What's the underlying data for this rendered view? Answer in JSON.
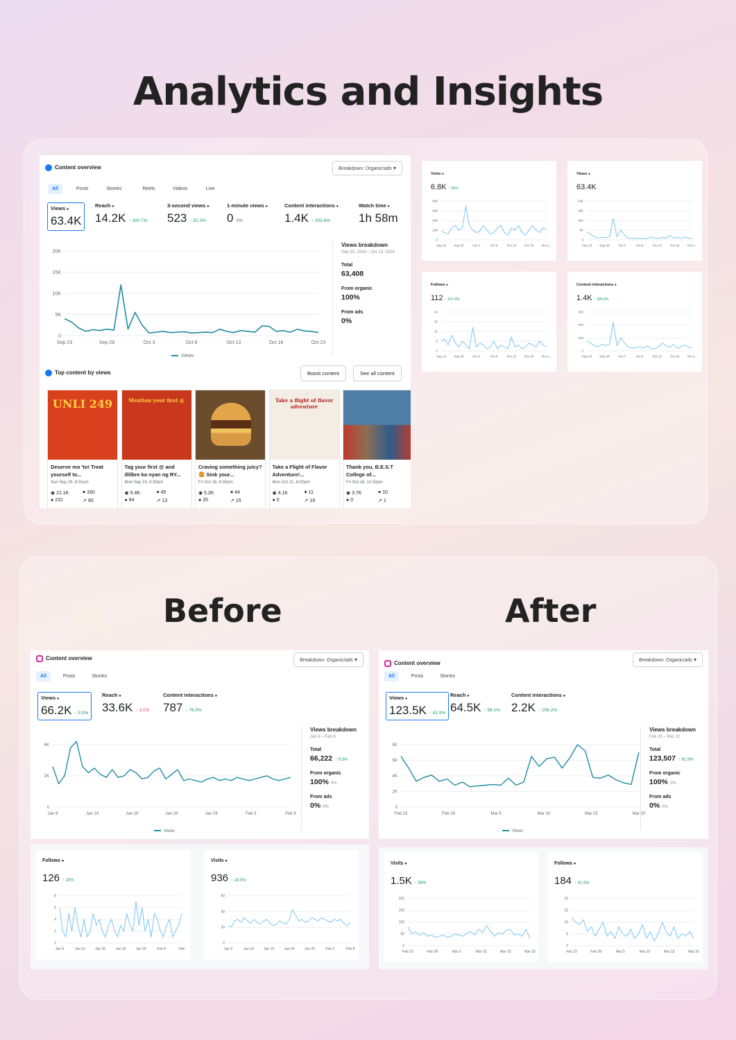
{
  "title": "Analytics and Insights",
  "before_label": "Before",
  "after_label": "After",
  "colors": {
    "line": "#1f8a9e",
    "light_line": "#7cc6f0",
    "accent": "#1877f2",
    "up": "#1a9a6c",
    "down": "#e4405f"
  },
  "top": {
    "panel_title": "Content overview",
    "breakdown": "Breakdown: Organic/ads",
    "tabs": [
      "All",
      "Posts",
      "Stories",
      "Reels",
      "Videos",
      "Live"
    ],
    "metrics": [
      {
        "label": "Views",
        "value": "63.4K",
        "change": ""
      },
      {
        "label": "Reach",
        "value": "14.2K",
        "change": "↑ 300.7%"
      },
      {
        "label": "3-second views",
        "value": "523",
        "change": "↑ 92.3%"
      },
      {
        "label": "1-minute views",
        "value": "0",
        "change": "0%"
      },
      {
        "label": "Content interactions",
        "value": "1.4K",
        "change": "↑ 305.6%"
      },
      {
        "label": "Watch time",
        "value": "1h 58m",
        "change": ""
      }
    ],
    "chart": {
      "yticks": [
        "20K",
        "15K",
        "10K",
        "5K",
        "0"
      ],
      "xticks": [
        "Sep 23",
        "Sep 28",
        "Oct 3",
        "Oct 8",
        "Oct 13",
        "Oct 18",
        "Oct 23"
      ],
      "values": [
        4000,
        3200,
        1800,
        1000,
        1400,
        1200,
        1500,
        1300,
        12000,
        1500,
        5500,
        2500,
        600,
        800,
        1000,
        700,
        800,
        900,
        600,
        700,
        800,
        700,
        1500,
        1000,
        700,
        1200,
        1000,
        800,
        2300,
        2200,
        1000,
        1200,
        800,
        1500,
        1100,
        1000,
        700
      ],
      "legend": "Views"
    },
    "breakdown_panel": {
      "heading": "Views breakdown",
      "date": "Sep 23, 2024 – Oct 23, 2024",
      "total_label": "Total",
      "total": "63,408",
      "organic_label": "From organic",
      "organic": "100%",
      "ads_label": "From ads",
      "ads": "0%"
    },
    "top_content_title": "Top content by views",
    "boost_button": "Boost content",
    "see_all_button": "See all content",
    "posts": [
      {
        "caption": "Deserve mo 'to! Treat yourself to...",
        "date": "Sun Sep 29, 6:01pm",
        "s1": "21.1K",
        "s2": "160",
        "s3": "231",
        "s4": "90",
        "img_text": "UNLI 249",
        "bg": "#d9411e"
      },
      {
        "caption": "Tag your first @ and illilbre ka nyan ng RY...",
        "date": "Mon Sep 23, 6:30pm",
        "s1": "5.4K",
        "s2": "45",
        "s3": "84",
        "s4": "13",
        "img_text": "Mention your first @",
        "bg": "#c9381c"
      },
      {
        "caption": "Craving something juicy? 🍔 Sink your...",
        "date": "Fri Oct 18, 6:30pm",
        "s1": "5.2K",
        "s2": "44",
        "s3": "20",
        "s4": "15",
        "img_text": "",
        "bg": "#6b4d2e"
      },
      {
        "caption": "Take a Flight of Flavor Adventure!...",
        "date": "Mon Oct 21, 6:00pm",
        "s1": "4.1K",
        "s2": "11",
        "s3": "0",
        "s4": "19",
        "img_text": "Take a flight of flavor adventure",
        "bg": "#f4ede4"
      },
      {
        "caption": "Thank you, B.E.S.T College of...",
        "date": "Fri Oct 18, 11:52pm",
        "s1": "3.7K",
        "s2": "10",
        "s3": "0",
        "s4": "1",
        "img_text": "",
        "bg": "#4e7da6"
      }
    ],
    "minis": [
      {
        "label": "Visits",
        "value": "6.8K",
        "change": "↑ 65%",
        "yticks": [
          "800",
          "600",
          "400",
          "200",
          "0"
        ],
        "ymax": 800,
        "values": [
          180,
          150,
          120,
          250,
          300,
          200,
          250,
          700,
          300,
          200,
          150,
          180,
          300,
          200,
          120,
          150,
          250,
          300,
          150,
          100,
          250,
          200,
          300,
          150,
          100,
          200,
          300,
          200,
          150,
          250,
          220
        ]
      },
      {
        "label": "Views",
        "value": "63.4K",
        "change": "",
        "yticks": [
          "20K",
          "15K",
          "10K",
          "5K",
          "0"
        ],
        "ymax": 20000,
        "values": [
          4000,
          3000,
          1500,
          1000,
          1300,
          1200,
          1500,
          11000,
          1500,
          5000,
          2500,
          800,
          900,
          700,
          800,
          600,
          700,
          1500,
          900,
          800,
          1200,
          900,
          2200,
          1000,
          1200,
          800,
          1400,
          1000,
          700
        ]
      },
      {
        "label": "Follows",
        "value": "112",
        "change": "↑ 167.4%",
        "yticks": [
          "20",
          "15",
          "10",
          "5",
          "0"
        ],
        "ymax": 20,
        "values": [
          5,
          6,
          3,
          8,
          4,
          2,
          5,
          3,
          1,
          12,
          2,
          4,
          3,
          1,
          2,
          5,
          1,
          3,
          2,
          1,
          7,
          2,
          3,
          1,
          2,
          4,
          3,
          2,
          5,
          3,
          2
        ]
      },
      {
        "label": "Content interactions",
        "value": "1.4K",
        "change": "↑ 305.6%",
        "yticks": [
          "300",
          "200",
          "100",
          "0"
        ],
        "ymax": 300,
        "values": [
          80,
          60,
          40,
          30,
          50,
          40,
          50,
          220,
          40,
          100,
          60,
          30,
          20,
          25,
          30,
          20,
          40,
          20,
          15,
          30,
          60,
          40,
          25,
          50,
          20,
          30,
          45,
          30,
          20
        ]
      }
    ],
    "mini_xticks": [
      "Sep 23",
      "Sep 28",
      "Oct 3",
      "Oct 8",
      "Oct 13",
      "Oct 18",
      "Oct 2..."
    ]
  },
  "before": {
    "panel_title": "Content overview",
    "breakdown": "Breakdown: Organic/ads",
    "tabs": [
      "All",
      "Posts",
      "Stories"
    ],
    "metrics": [
      {
        "label": "Views",
        "value": "66.2K",
        "change": "↑ 9.3%",
        "dir": "up"
      },
      {
        "label": "Reach",
        "value": "33.6K",
        "change": "↓ 3.1%",
        "dir": "down"
      },
      {
        "label": "Content interactions",
        "value": "787",
        "change": "↑ 76.5%",
        "dir": "up"
      }
    ],
    "chart": {
      "yticks": [
        "4K",
        "2K",
        "0"
      ],
      "ymax": 4000,
      "xticks": [
        "Jan 9",
        "Jan 14",
        "Jan 19",
        "Jan 24",
        "Jan 29",
        "Feb 3",
        "Feb 8"
      ],
      "values": [
        2600,
        1500,
        2000,
        3800,
        4200,
        2600,
        2200,
        2500,
        2100,
        1900,
        2400,
        1900,
        2000,
        2400,
        2200,
        1800,
        1900,
        2300,
        2500,
        1800,
        2100,
        2400,
        1700,
        1800,
        1700,
        1600,
        1800,
        1900,
        1700,
        1800,
        1700,
        1900,
        1800,
        1700,
        1800,
        1900,
        2000,
        1800,
        1700,
        1800,
        1900
      ],
      "legend": "Views"
    },
    "breakdown_panel": {
      "heading": "Views breakdown",
      "date": "Jan 9 – Feb 9",
      "total_label": "Total",
      "total": "66,222",
      "total_change": "↑ 9.3%",
      "organic_label": "From organic",
      "organic": "100%",
      "organic_change": "0%",
      "ads_label": "From ads",
      "ads": "0%",
      "ads_change": "0%"
    },
    "smalls": [
      {
        "label": "Follows",
        "value": "126",
        "change": "↑ 20%",
        "yticks": [
          "8",
          "6",
          "4",
          "2",
          "0"
        ],
        "ymax": 8,
        "xticks": [
          "Jan 9",
          "Jan 15",
          "Jan 20",
          "Jan 25",
          "Jan 30",
          "Feb 4",
          "Feb"
        ],
        "values": [
          6,
          2,
          1,
          5,
          2,
          6,
          3,
          1,
          4,
          1,
          2,
          5,
          3,
          4,
          2,
          1,
          3,
          4,
          2,
          1,
          3,
          2,
          5,
          3,
          2,
          7,
          3,
          6,
          2,
          4,
          1,
          5,
          4,
          2,
          1,
          3,
          4,
          1,
          2,
          3,
          5
        ]
      },
      {
        "label": "Visits",
        "value": "936",
        "change": "↑ 18.5%",
        "yticks": [
          "60",
          "40",
          "20",
          "0"
        ],
        "ymax": 60,
        "xticks": [
          "Jan 9",
          "Jan 14",
          "Jan 19",
          "Jan 24",
          "Jan 29",
          "Feb 3",
          "Feb 8"
        ],
        "values": [
          22,
          20,
          28,
          30,
          26,
          32,
          28,
          25,
          30,
          26,
          24,
          28,
          30,
          25,
          22,
          24,
          28,
          26,
          24,
          30,
          42,
          35,
          28,
          30,
          26,
          28,
          32,
          30,
          28,
          32,
          30,
          28,
          26,
          30,
          28,
          30,
          25,
          22,
          26
        ]
      }
    ]
  },
  "after": {
    "panel_title": "Content overview",
    "breakdown": "Breakdown: Organic/ads",
    "tabs": [
      "All",
      "Posts",
      "Stories"
    ],
    "metrics": [
      {
        "label": "Views",
        "value": "123.5K",
        "change": "↑ 81.9%",
        "dir": "up"
      },
      {
        "label": "Reach",
        "value": "64.5K",
        "change": "↑ 98.1%",
        "dir": "up"
      },
      {
        "label": "Content interactions",
        "value": "2.2K",
        "change": "↑ 256.2%",
        "dir": "up"
      }
    ],
    "chart": {
      "yticks": [
        "8K",
        "6K",
        "4K",
        "2K",
        "0"
      ],
      "ymax": 8000,
      "xticks": [
        "Feb 23",
        "Feb 28",
        "Mar 5",
        "Mar 10",
        "Mar 15",
        "Mar 20"
      ],
      "values": [
        6500,
        5000,
        3300,
        3800,
        4100,
        3300,
        3600,
        2800,
        3200,
        2600,
        2700,
        2800,
        2900,
        2800,
        3700,
        2800,
        3200,
        6500,
        5200,
        6200,
        6400,
        5000,
        6300,
        8000,
        7200,
        3800,
        3700,
        4100,
        3500,
        3100,
        2900,
        7000
      ],
      "legend": "Views"
    },
    "breakdown_panel": {
      "heading": "Views breakdown",
      "date": "Feb 23 – Mar 22",
      "total_label": "Total",
      "total": "123,507",
      "total_change": "↑ 81.9%",
      "organic_label": "From organic",
      "organic": "100%",
      "organic_change": "0%",
      "ads_label": "From ads",
      "ads": "0%",
      "ads_change": "0%"
    },
    "smalls": [
      {
        "label": "Visits",
        "value": "1.5K",
        "change": "↑ 58%",
        "yticks": [
          "200",
          "150",
          "100",
          "50",
          "0"
        ],
        "ymax": 200,
        "xticks": [
          "Feb 23",
          "Feb 28",
          "Mar 5",
          "Mar 10",
          "Mar 15",
          "Mar 20"
        ],
        "values": [
          80,
          50,
          60,
          45,
          55,
          40,
          45,
          35,
          40,
          45,
          35,
          40,
          50,
          45,
          40,
          55,
          60,
          45,
          70,
          55,
          85,
          60,
          40,
          55,
          50,
          65,
          70,
          45,
          50,
          40,
          70,
          30
        ]
      },
      {
        "label": "Follows",
        "value": "184",
        "change": "↑ 41.5%",
        "yticks": [
          "20",
          "15",
          "10",
          "5",
          "0"
        ],
        "ymax": 20,
        "xticks": [
          "Feb 23",
          "Feb 28",
          "Mar 5",
          "Mar 10",
          "Mar 15",
          "Mar 20"
        ],
        "values": [
          12,
          10,
          9,
          11,
          6,
          8,
          4,
          7,
          10,
          4,
          6,
          3,
          8,
          5,
          4,
          7,
          3,
          5,
          9,
          3,
          6,
          2,
          5,
          10,
          6,
          4,
          8,
          3,
          5,
          4,
          6,
          3
        ]
      }
    ]
  }
}
